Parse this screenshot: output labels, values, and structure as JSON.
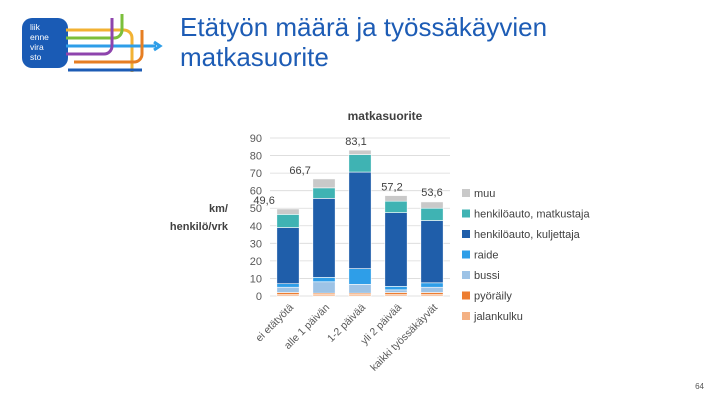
{
  "slide": {
    "title": "Etätyön määrä ja työssäkäyvien matkasuorite",
    "page_number": "64",
    "logo_lines": [
      "liik",
      "enne",
      "vira",
      "sto"
    ]
  },
  "chart_data": {
    "type": "bar",
    "stacked": true,
    "title": "matkasuorite",
    "ylabel": "km/ henkilö/vrk",
    "ylim": [
      0,
      90
    ],
    "yticks": [
      0,
      10,
      20,
      30,
      40,
      50,
      60,
      70,
      80,
      90
    ],
    "categories": [
      "ei etätyötä",
      "alle 1 päivän",
      "1-2 päivää",
      "yli 2 päivää",
      "kaikki työssäkäyvät"
    ],
    "totals": [
      "49,6",
      "66,7",
      "83,1",
      "57,2",
      "53,6"
    ],
    "legend_position": "right",
    "series": [
      {
        "name": "jalankulku",
        "color": "#f4b183",
        "values": [
          0.8,
          0.8,
          0.8,
          0.8,
          0.8
        ]
      },
      {
        "name": "pyöräily",
        "color": "#ed7d31",
        "values": [
          1.2,
          0.8,
          0.8,
          1.2,
          1.2
        ]
      },
      {
        "name": "bussi",
        "color": "#9dc3e6",
        "values": [
          3.0,
          6.5,
          5.0,
          1.5,
          3.0
        ]
      },
      {
        "name": "raide",
        "color": "#2e9ee8",
        "values": [
          2.0,
          2.5,
          9.0,
          2.0,
          2.5
        ]
      },
      {
        "name": "henkilöauto, kuljettaja",
        "color": "#1f5eaa",
        "values": [
          32.0,
          45.0,
          55.0,
          42.0,
          35.5
        ]
      },
      {
        "name": "henkilöauto, matkustaja",
        "color": "#3fb3b3",
        "values": [
          7.5,
          6.0,
          10.0,
          6.5,
          7.0
        ]
      },
      {
        "name": "muu",
        "color": "#c9c9c9",
        "values": [
          3.1,
          5.1,
          2.5,
          3.2,
          3.6
        ]
      }
    ]
  }
}
